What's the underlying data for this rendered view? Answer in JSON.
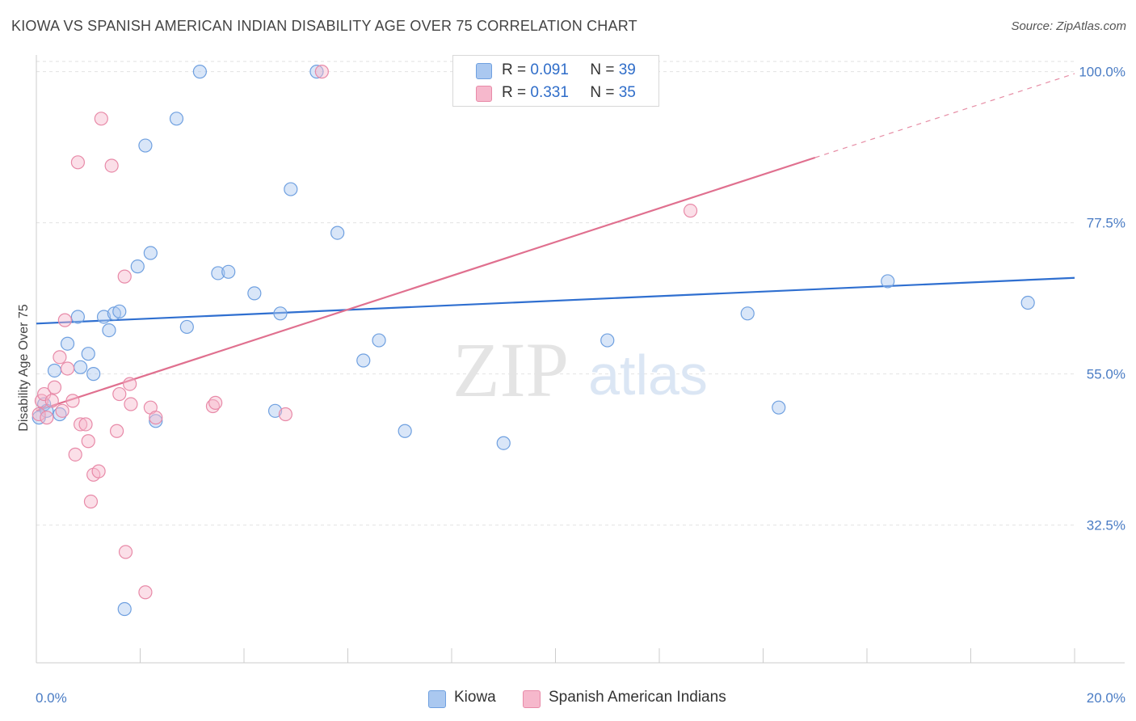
{
  "header": {
    "title": "KIOWA VS SPANISH AMERICAN INDIAN DISABILITY AGE OVER 75 CORRELATION CHART",
    "source": "Source: ZipAtlas.com"
  },
  "watermark": {
    "zip": "ZIP",
    "atlas": "atlas"
  },
  "legend": {
    "rows": [
      {
        "r_label": "R =",
        "r_value": "0.091",
        "n_label": "N =",
        "n_value": "39",
        "color": "#aac8f0"
      },
      {
        "r_label": "R =",
        "r_value": "0.331",
        "n_label": "N =",
        "n_value": "35",
        "color": "#f6b8cc"
      }
    ]
  },
  "bottom_legend": [
    {
      "label": "Kiowa",
      "color": "#aac8f0"
    },
    {
      "label": "Spanish American Indians",
      "color": "#f6b8cc"
    }
  ],
  "chart_data": {
    "type": "scatter",
    "title": "KIOWA VS SPANISH AMERICAN INDIAN DISABILITY AGE OVER 75 CORRELATION CHART",
    "xlabel": "",
    "ylabel": "Disability Age Over 75",
    "xlim": [
      0,
      20
    ],
    "ylim": [
      12,
      102
    ],
    "x_tick_labels": [
      {
        "value": 0,
        "label": "0.0%"
      },
      {
        "value": 20,
        "label": "20.0%"
      }
    ],
    "y_tick_labels": [
      {
        "value": 100,
        "label": "100.0%"
      },
      {
        "value": 77.5,
        "label": "77.5%"
      },
      {
        "value": 55,
        "label": "55.0%"
      },
      {
        "value": 32.5,
        "label": "32.5%"
      }
    ],
    "x_minor_ticks": [
      0,
      2,
      4,
      6,
      8,
      10,
      12,
      14,
      16,
      18,
      20
    ],
    "grid": true,
    "legend_position": "top-center",
    "series": [
      {
        "name": "Kiowa",
        "color": "#6fa0e0",
        "fill": "#aac8f0",
        "points": [
          [
            0.05,
            48.5
          ],
          [
            0.15,
            50.5
          ],
          [
            0.2,
            49.5
          ],
          [
            0.35,
            55.5
          ],
          [
            0.45,
            49.0
          ],
          [
            0.6,
            59.5
          ],
          [
            0.8,
            63.5
          ],
          [
            0.85,
            56.0
          ],
          [
            1.0,
            58.0
          ],
          [
            1.1,
            55.0
          ],
          [
            1.3,
            63.5
          ],
          [
            1.4,
            61.5
          ],
          [
            1.5,
            64.0
          ],
          [
            1.6,
            64.3
          ],
          [
            1.7,
            20.0
          ],
          [
            1.95,
            71.0
          ],
          [
            2.1,
            89.0
          ],
          [
            2.2,
            73.0
          ],
          [
            2.3,
            48.0
          ],
          [
            2.7,
            93.0
          ],
          [
            2.9,
            62.0
          ],
          [
            3.15,
            100.0
          ],
          [
            3.5,
            70.0
          ],
          [
            3.7,
            70.2
          ],
          [
            4.2,
            67.0
          ],
          [
            4.6,
            49.5
          ],
          [
            4.7,
            64.0
          ],
          [
            4.9,
            82.5
          ],
          [
            5.4,
            100.0
          ],
          [
            5.8,
            76.0
          ],
          [
            6.3,
            57.0
          ],
          [
            6.6,
            60.0
          ],
          [
            7.1,
            46.5
          ],
          [
            9.0,
            44.7
          ],
          [
            11.0,
            60.0
          ],
          [
            13.7,
            64.0
          ],
          [
            14.3,
            50.0
          ],
          [
            16.4,
            68.8
          ],
          [
            19.1,
            65.6
          ]
        ]
      },
      {
        "name": "Spanish American Indians",
        "color": "#e88aa8",
        "fill": "#f6b8cc",
        "points": [
          [
            0.05,
            49.0
          ],
          [
            0.1,
            51.0
          ],
          [
            0.15,
            52.0
          ],
          [
            0.2,
            48.5
          ],
          [
            0.3,
            51.0
          ],
          [
            0.35,
            53.0
          ],
          [
            0.45,
            57.5
          ],
          [
            0.5,
            49.5
          ],
          [
            0.55,
            63.0
          ],
          [
            0.6,
            55.8
          ],
          [
            0.7,
            51.0
          ],
          [
            0.75,
            43.0
          ],
          [
            0.8,
            86.5
          ],
          [
            0.85,
            47.5
          ],
          [
            0.95,
            47.5
          ],
          [
            1.0,
            45.0
          ],
          [
            1.05,
            36.0
          ],
          [
            1.1,
            40.0
          ],
          [
            1.2,
            40.5
          ],
          [
            1.25,
            93.0
          ],
          [
            1.45,
            86.0
          ],
          [
            1.55,
            46.5
          ],
          [
            1.6,
            52.0
          ],
          [
            1.7,
            69.5
          ],
          [
            1.72,
            28.5
          ],
          [
            1.8,
            53.5
          ],
          [
            1.82,
            50.5
          ],
          [
            2.1,
            22.5
          ],
          [
            2.2,
            50.0
          ],
          [
            2.3,
            48.5
          ],
          [
            3.4,
            50.2
          ],
          [
            3.45,
            50.7
          ],
          [
            4.8,
            49.0
          ],
          [
            5.5,
            100.0
          ],
          [
            12.6,
            79.3
          ]
        ]
      }
    ],
    "trend_lines": [
      {
        "series": "Kiowa",
        "from": [
          0,
          62.5
        ],
        "to": [
          20,
          69.3
        ],
        "style": "solid"
      },
      {
        "series": "Spanish American Indians",
        "from": [
          0,
          49.5
        ],
        "to": [
          15.0,
          87.2
        ],
        "style": "solid"
      },
      {
        "series": "Spanish American Indians",
        "from": [
          15.0,
          87.2
        ],
        "to": [
          20,
          99.7
        ],
        "style": "dashed"
      }
    ]
  }
}
